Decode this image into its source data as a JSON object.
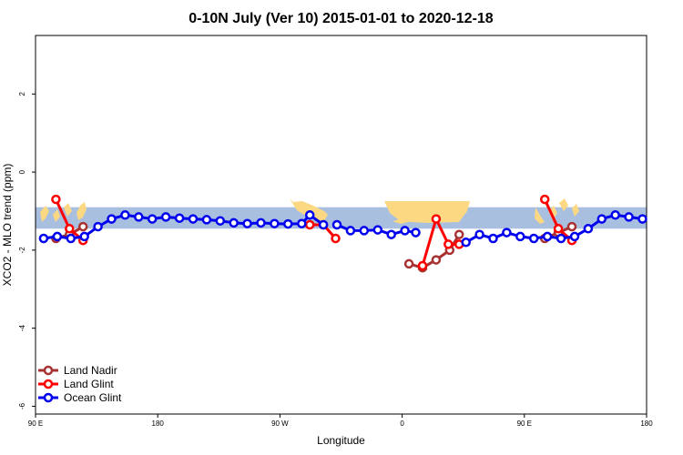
{
  "chart_data": {
    "type": "line",
    "title": "0-10N July (Ver 10)   2015-01-01 to 2020-12-18",
    "xlabel": "Longitude",
    "ylabel": "XCO2 - MLO trend (ppm)",
    "xlim": [
      90,
      540
    ],
    "ylim": [
      -6.2,
      3.5
    ],
    "x_ticks": [
      {
        "value": 90,
        "label": "90 E"
      },
      {
        "value": 180,
        "label": "180"
      },
      {
        "value": 270,
        "label": "90 W"
      },
      {
        "value": 360,
        "label": "0"
      },
      {
        "value": 450,
        "label": "90 E"
      },
      {
        "value": 540,
        "label": "180"
      }
    ],
    "y_ticks": [
      {
        "value": -6,
        "label": "-6"
      },
      {
        "value": -4,
        "label": "-4"
      },
      {
        "value": -2,
        "label": "-2"
      },
      {
        "value": 0,
        "label": "0"
      },
      {
        "value": 2,
        "label": "2"
      }
    ],
    "map_band": {
      "ymin": -1.45,
      "ymax": -0.9,
      "ocean_color": "#a9bfe0",
      "land_color": "#fdd882"
    },
    "legend_position": "bottom-left",
    "series": [
      {
        "name": "Land Nadir",
        "color": "#a83232",
        "segments": [
          [
            [
              105,
              -1.7
            ],
            [
              115,
              -1.6
            ],
            [
              125,
              -1.4
            ]
          ],
          [
            [
              365,
              -2.35
            ],
            [
              375,
              -2.45
            ],
            [
              385,
              -2.25
            ],
            [
              395,
              -2.0
            ],
            [
              402,
              -1.6
            ]
          ],
          [
            [
              465,
              -1.7
            ],
            [
              475,
              -1.55
            ],
            [
              485,
              -1.4
            ]
          ]
        ]
      },
      {
        "name": "Land Glint",
        "color": "#ff0000",
        "segments": [
          [
            [
              105,
              -0.7
            ],
            [
              115,
              -1.45
            ],
            [
              125,
              -1.75
            ]
          ],
          [
            [
              292,
              -1.35
            ],
            [
              302,
              -1.35
            ],
            [
              311,
              -1.7
            ]
          ],
          [
            [
              375,
              -2.4
            ],
            [
              385,
              -1.2
            ],
            [
              394,
              -1.85
            ],
            [
              402,
              -1.85
            ]
          ],
          [
            [
              465,
              -0.7
            ],
            [
              475,
              -1.45
            ],
            [
              485,
              -1.75
            ]
          ]
        ]
      },
      {
        "name": "Ocean Glint",
        "color": "#0000ee",
        "segments": [
          [
            [
              96,
              -1.7
            ],
            [
              106,
              -1.65
            ],
            [
              116,
              -1.7
            ],
            [
              126,
              -1.65
            ],
            [
              136,
              -1.4
            ],
            [
              146,
              -1.2
            ],
            [
              156,
              -1.1
            ],
            [
              166,
              -1.15
            ],
            [
              176,
              -1.2
            ],
            [
              186,
              -1.15
            ],
            [
              196,
              -1.18
            ],
            [
              206,
              -1.2
            ],
            [
              216,
              -1.22
            ],
            [
              226,
              -1.25
            ],
            [
              236,
              -1.3
            ],
            [
              246,
              -1.32
            ],
            [
              256,
              -1.3
            ],
            [
              266,
              -1.32
            ],
            [
              276,
              -1.33
            ],
            [
              286,
              -1.32
            ],
            [
              292,
              -1.1
            ],
            [
              302,
              -1.35
            ]
          ],
          [
            [
              312,
              -1.35
            ],
            [
              322,
              -1.5
            ],
            [
              332,
              -1.5
            ],
            [
              342,
              -1.48
            ],
            [
              352,
              -1.6
            ],
            [
              362,
              -1.5
            ],
            [
              370,
              -1.55
            ]
          ],
          [
            [
              407,
              -1.8
            ],
            [
              417,
              -1.6
            ],
            [
              427,
              -1.7
            ],
            [
              437,
              -1.55
            ],
            [
              447,
              -1.65
            ],
            [
              457,
              -1.7
            ],
            [
              467,
              -1.65
            ],
            [
              477,
              -1.7
            ],
            [
              487,
              -1.65
            ],
            [
              497,
              -1.45
            ],
            [
              507,
              -1.2
            ],
            [
              517,
              -1.1
            ],
            [
              527,
              -1.15
            ],
            [
              537,
              -1.2
            ]
          ]
        ]
      }
    ]
  }
}
